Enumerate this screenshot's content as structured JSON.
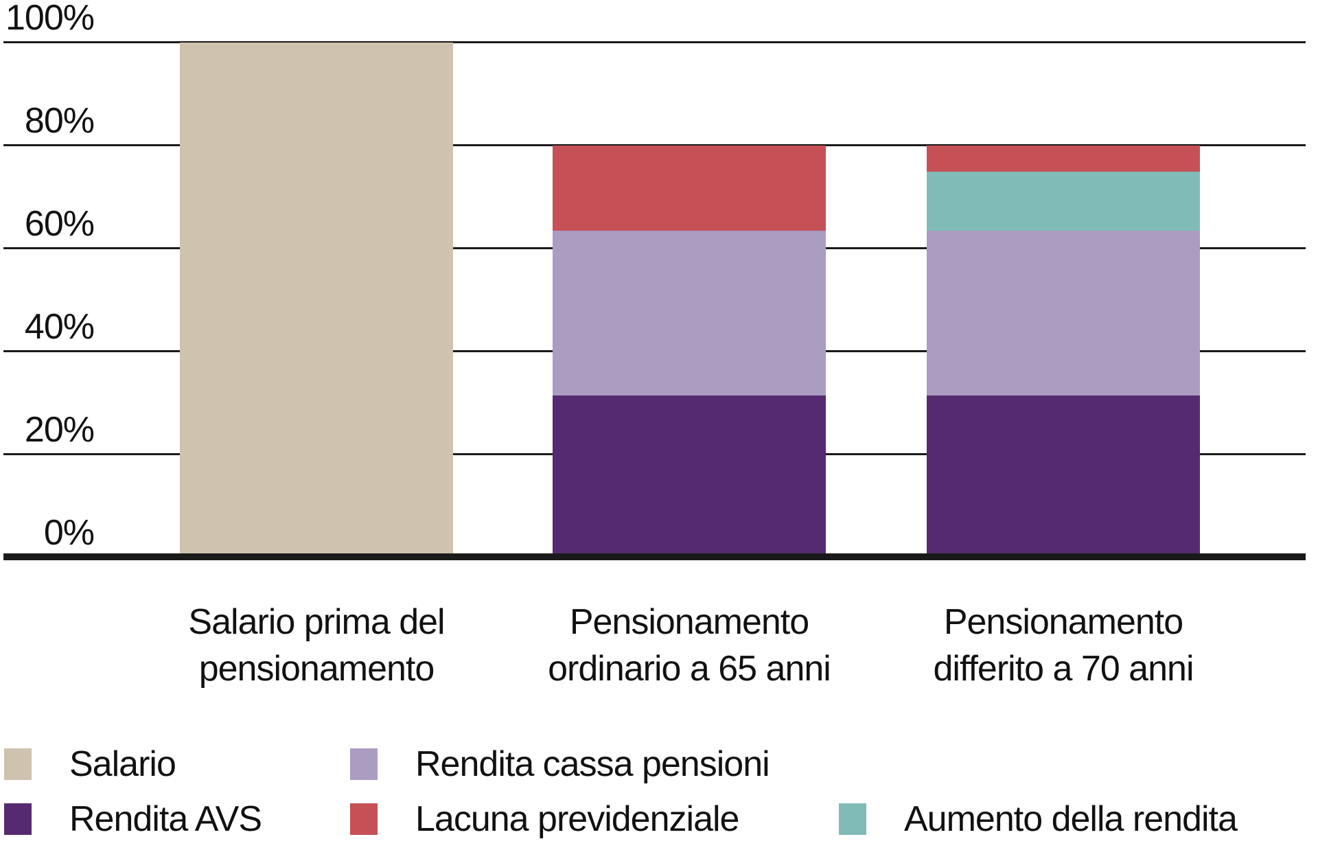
{
  "chart_data": {
    "type": "bar",
    "stacked": true,
    "title": "",
    "categories": [
      "Salario prima del\npensionamento",
      "Pensionamento\nordinario a 65 anni",
      "Pensionamento\ndifferito a 70 anni"
    ],
    "series": [
      {
        "name": "Salario",
        "color": "#cfc2ae",
        "values": [
          100,
          0,
          0
        ]
      },
      {
        "name": "Rendita AVS",
        "color": "#562a70",
        "values": [
          0,
          31.5,
          31.5
        ]
      },
      {
        "name": "Rendita cassa pensioni",
        "color": "#ab9cc1",
        "values": [
          0,
          32,
          32
        ]
      },
      {
        "name": "Aumento della rendita",
        "color": "#80bbb8",
        "values": [
          0,
          0,
          11.5
        ]
      },
      {
        "name": "Lacuna previdenziale",
        "color": "#c55157",
        "values": [
          0,
          16.5,
          5
        ]
      }
    ],
    "bar_totals": [
      100,
      80,
      80
    ],
    "values_unit": "%",
    "xlabel": "",
    "ylabel": "",
    "ylim": [
      0,
      100
    ],
    "yticks": [
      0,
      20,
      40,
      60,
      80,
      100
    ],
    "ytick_labels": [
      "0%",
      "20%",
      "40%",
      "60%",
      "80%",
      "100%"
    ],
    "grid": true,
    "grid_color": "#1a1a1a",
    "axis_color": "#1a1a1a",
    "text_color": "#111111",
    "background_color": "#ffffff",
    "legend_position": "bottom",
    "legend_layout": [
      [
        "Salario",
        "Rendita cassa pensioni",
        null
      ],
      [
        "Rendita AVS",
        "Lacuna previdenziale",
        "Aumento della rendita"
      ]
    ]
  }
}
